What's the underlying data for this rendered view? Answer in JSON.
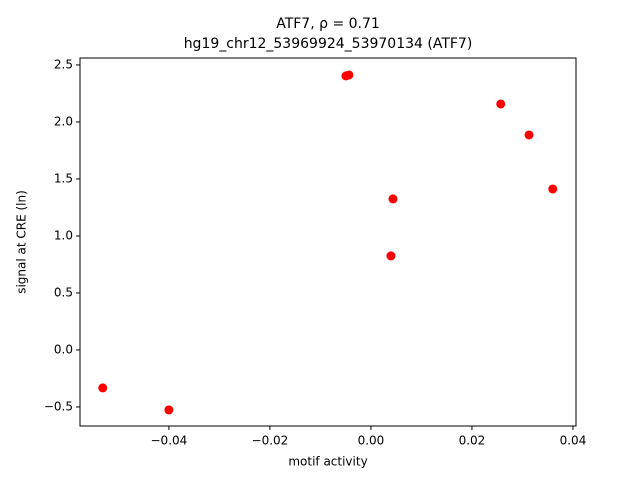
{
  "chart_data": {
    "type": "scatter",
    "title": "ATF7, ρ = 0.71",
    "subtitle": "hg19_chr12_53969924_53970134 (ATF7)",
    "xlabel": "motif activity",
    "ylabel": "signal at CRE (ln)",
    "color": "#ff0000",
    "x": [
      -0.0531,
      -0.04,
      -0.00495,
      -0.00436,
      0.00396,
      0.00436,
      0.0257,
      0.0313,
      0.036
    ],
    "values": [
      -0.333,
      -0.526,
      2.404,
      2.412,
      0.825,
      1.325,
      2.158,
      1.886,
      1.412
    ],
    "xlim": [
      -0.0576,
      0.0406
    ],
    "ylim": [
      -0.667,
      2.561
    ],
    "xticks": [
      {
        "value": -0.04,
        "label": "−0.04"
      },
      {
        "value": -0.02,
        "label": "−0.02"
      },
      {
        "value": 0,
        "label": "0.00"
      },
      0.02,
      0.04
    ],
    "yticks": [
      {
        "value": -0.5,
        "label": "−0.5"
      },
      {
        "value": 0,
        "label": "0.0"
      },
      0.5,
      {
        "value": 1,
        "label": "1.0"
      },
      1.5,
      {
        "value": 2,
        "label": "2.0"
      },
      2.5
    ]
  }
}
